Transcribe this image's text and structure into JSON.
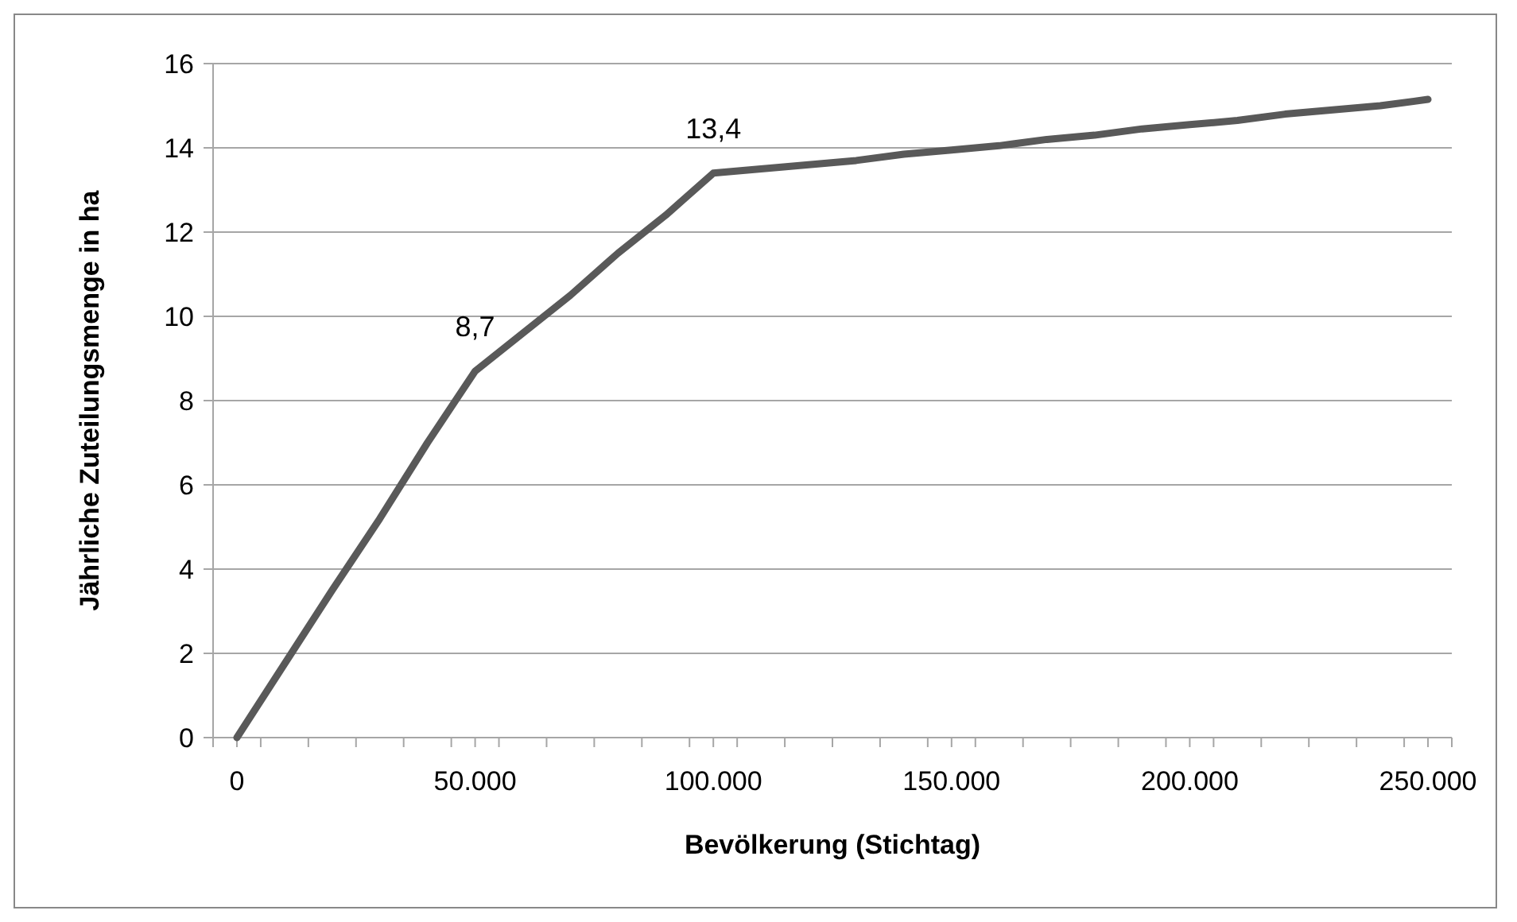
{
  "chart_data": {
    "type": "line",
    "xlabel": "Bevölkerung (Stichtag)",
    "ylabel": "Jährliche Zuteilungsmenge in ha",
    "x": [
      0,
      10000,
      20000,
      30000,
      40000,
      50000,
      60000,
      70000,
      80000,
      90000,
      100000,
      110000,
      120000,
      130000,
      140000,
      150000,
      160000,
      170000,
      180000,
      190000,
      200000,
      210000,
      220000,
      230000,
      240000,
      250000
    ],
    "series": [
      {
        "color": "#595959",
        "values": [
          0,
          1.75,
          3.5,
          5.2,
          7.0,
          8.7,
          9.6,
          10.5,
          11.5,
          12.4,
          13.4,
          13.5,
          13.6,
          13.7,
          13.85,
          13.95,
          14.05,
          14.2,
          14.3,
          14.45,
          14.55,
          14.65,
          14.8,
          14.9,
          15.0,
          15.15
        ]
      }
    ],
    "xlim": [
      -5000,
      255000
    ],
    "xticks": [
      {
        "value": -5000,
        "label": null
      },
      {
        "value": 0,
        "label": "0"
      },
      {
        "value": 5000,
        "label": null
      },
      {
        "value": 15000,
        "label": null
      },
      {
        "value": 25000,
        "label": null
      },
      {
        "value": 35000,
        "label": null
      },
      {
        "value": 45000,
        "label": null
      },
      {
        "value": 50000,
        "label": "50.000"
      },
      {
        "value": 55000,
        "label": null
      },
      {
        "value": 65000,
        "label": null
      },
      {
        "value": 75000,
        "label": null
      },
      {
        "value": 85000,
        "label": null
      },
      {
        "value": 95000,
        "label": null
      },
      {
        "value": 100000,
        "label": "100.000"
      },
      {
        "value": 105000,
        "label": null
      },
      {
        "value": 115000,
        "label": null
      },
      {
        "value": 125000,
        "label": null
      },
      {
        "value": 135000,
        "label": null
      },
      {
        "value": 145000,
        "label": null
      },
      {
        "value": 150000,
        "label": "150.000"
      },
      {
        "value": 155000,
        "label": null
      },
      {
        "value": 165000,
        "label": null
      },
      {
        "value": 175000,
        "label": null
      },
      {
        "value": 185000,
        "label": null
      },
      {
        "value": 195000,
        "label": null
      },
      {
        "value": 200000,
        "label": "200.000"
      },
      {
        "value": 205000,
        "label": null
      },
      {
        "value": 215000,
        "label": null
      },
      {
        "value": 225000,
        "label": null
      },
      {
        "value": 235000,
        "label": null
      },
      {
        "value": 245000,
        "label": null
      },
      {
        "value": 250000,
        "label": "250.000"
      },
      {
        "value": 255000,
        "label": null
      }
    ],
    "ylim": [
      0,
      16
    ],
    "yticks": [
      0,
      2,
      4,
      6,
      8,
      10,
      12,
      14,
      16
    ],
    "grid": "y",
    "marker": "none",
    "line_style": "solid",
    "annotations": [
      {
        "text": "8,7",
        "x": 50000,
        "y": 8.7
      },
      {
        "text": "13,4",
        "x": 100000,
        "y": 13.4
      }
    ]
  }
}
